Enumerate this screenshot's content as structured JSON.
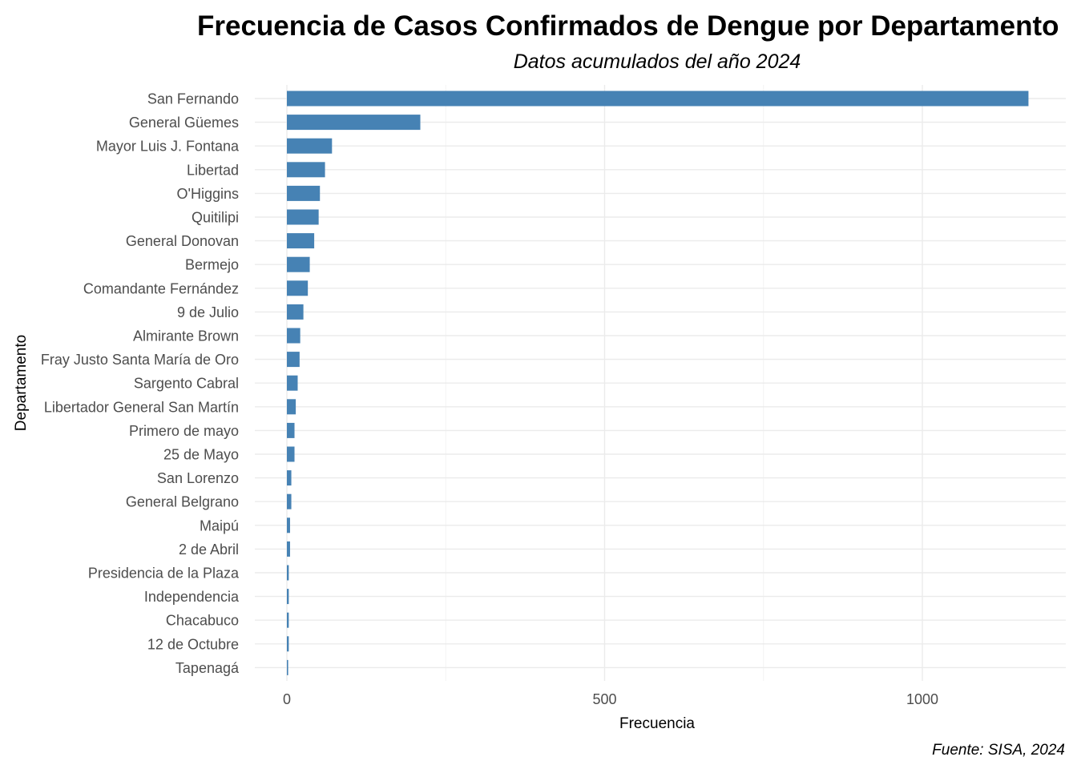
{
  "chart_data": {
    "type": "bar",
    "orientation": "horizontal",
    "title": "Frecuencia de Casos Confirmados de Dengue por Departamento",
    "subtitle": "Datos acumulados del año 2024",
    "xlabel": "Frecuencia",
    "ylabel": "Departamento",
    "caption": "Fuente: SISA, 2024",
    "xlim": [
      0,
      1230
    ],
    "xticks": [
      0,
      500,
      1000
    ],
    "xtick_labels": [
      "0",
      "500",
      "1000"
    ],
    "xticks_minor": [
      250,
      750
    ],
    "grid": true,
    "bar_color": "#4682b4",
    "categories": [
      "San Fernando",
      "General Güemes",
      "Mayor Luis J. Fontana",
      "Libertad",
      "O'Higgins",
      "Quitilipi",
      "General Donovan",
      "Bermejo",
      "Comandante Fernández",
      "9 de Julio",
      "Almirante Brown",
      "Fray Justo Santa María de Oro",
      "Sargento Cabral",
      "Libertador General San Martín",
      "Primero de mayo",
      "25 de Mayo",
      "San Lorenzo",
      "General Belgrano",
      "Maipú",
      "2 de Abril",
      "Presidencia de la Plaza",
      "Independencia",
      "Chacabuco",
      "12 de Octubre",
      "Tapenagá"
    ],
    "values": [
      1167,
      210,
      71,
      60,
      52,
      50,
      43,
      36,
      33,
      26,
      21,
      20,
      17,
      14,
      12,
      12,
      7,
      7,
      5,
      5,
      3,
      3,
      3,
      3,
      2
    ]
  }
}
